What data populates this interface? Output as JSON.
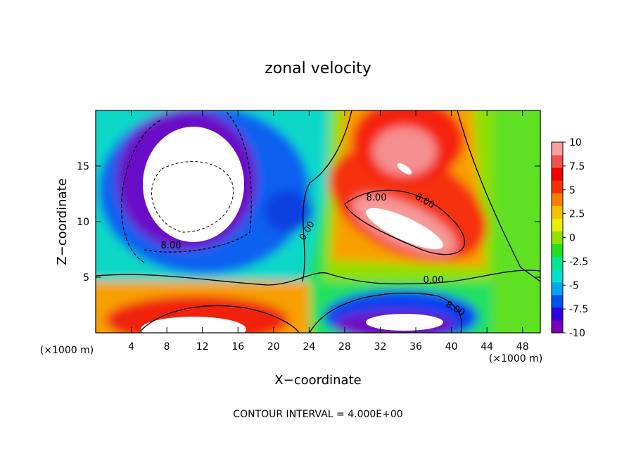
{
  "chart_data": {
    "type": "contour",
    "title": "zonal velocity",
    "x_label": "X−coordinate",
    "y_label": "Z−coordinate",
    "x_unit_label": "(×1000 m)",
    "annotation": "CONTOUR INTERVAL = 4.000E+00",
    "contour_labels": [
      "8.00",
      "8.00",
      "8.00",
      "0.00",
      "0.00",
      "8.00"
    ],
    "xlim": [
      0,
      50
    ],
    "xticks": [
      4,
      8,
      12,
      16,
      20,
      24,
      28,
      32,
      36,
      40,
      44,
      48
    ],
    "ylim": [
      0,
      20
    ],
    "yticks": [
      5,
      10,
      15
    ],
    "colorbar": {
      "lim": [
        -10,
        10
      ],
      "ticks": [
        -10,
        -7.5,
        -5,
        -2.5,
        0,
        2.5,
        5,
        7.5,
        10
      ],
      "colors": [
        "#7a00b8",
        "#3000e0",
        "#0050f0",
        "#00a8f0",
        "#00e0d0",
        "#00e890",
        "#20e020",
        "#90e000",
        "#e8f000",
        "#f8c000",
        "#f88000",
        "#f83000",
        "#f00000",
        "#f05050",
        "#f8a0a0"
      ]
    }
  }
}
